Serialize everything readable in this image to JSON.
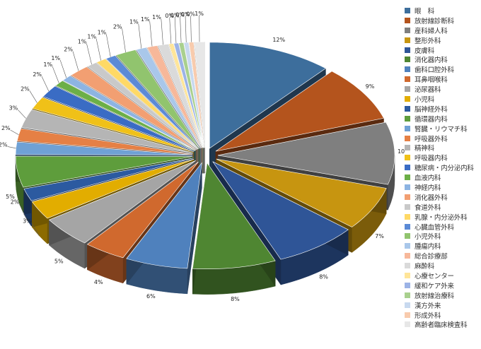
{
  "chart_data": {
    "type": "pie",
    "title": "",
    "categories": [
      "眼　科",
      "放射線診断科",
      "産科婦人科",
      "整形外科",
      "皮膚科",
      "消化器内科",
      "歯科口腔外科",
      "耳鼻咽喉科",
      "泌尿器科",
      "小児科",
      "脳神経外科",
      "循環器内科",
      "腎臓・リウマチ科",
      "呼吸器外科",
      "精神科",
      "呼吸器内科",
      "糖尿病・内分泌内科",
      "血液内科",
      "神経内科",
      "消化器外科",
      "食道外科",
      "乳腺・内分泌外科",
      "心臓血管外科",
      "小児外科",
      "腫瘍内科",
      "総合診療部",
      "麻酔科",
      "心療センター",
      "緩和ケア外来",
      "放射線治療科",
      "漢方外来",
      "形成外科",
      "高齢者臨床検査科"
    ],
    "values": [
      12,
      9,
      10,
      7,
      8,
      8,
      6,
      4,
      5,
      3,
      2,
      5,
      2,
      2,
      3,
      2,
      2,
      1,
      1,
      2,
      1,
      1,
      1,
      2,
      1,
      1,
      1,
      0,
      0,
      0,
      0,
      0,
      1
    ],
    "labels": [
      "12%",
      "9%",
      "10%",
      "7%",
      "8%",
      "8%",
      "6%",
      "4%",
      "5%",
      "3%",
      "2%",
      "5%",
      "2%",
      "2%",
      "3%",
      "2%",
      "2%",
      "1%",
      "1%",
      "2%",
      "1%",
      "1%",
      "1%",
      "2%",
      "1%",
      "1%",
      "1%",
      "0%",
      "0%",
      "0%",
      "0%",
      "0%",
      "1%"
    ],
    "colors": [
      "#3d6e9c",
      "#b4541d",
      "#7f7f7f",
      "#c79510",
      "#2f5597",
      "#4f8632",
      "#4f81bd",
      "#d0692e",
      "#a5a5a5",
      "#e2ad00",
      "#2c5aa0",
      "#5e9d3c",
      "#6fa1d5",
      "#e58045",
      "#b5b5b5",
      "#f0c118",
      "#3a6cc4",
      "#6caf47",
      "#8db4e2",
      "#f29f72",
      "#c9c9c9",
      "#ffd966",
      "#5b8ad6",
      "#91c46e",
      "#a9c7ea",
      "#f7b89a",
      "#dadada",
      "#ffe599",
      "#9cb3e6",
      "#a9d08e",
      "#c8d9ef",
      "#f8cbad",
      "#e7e7e7"
    ],
    "legend_position": "right"
  }
}
